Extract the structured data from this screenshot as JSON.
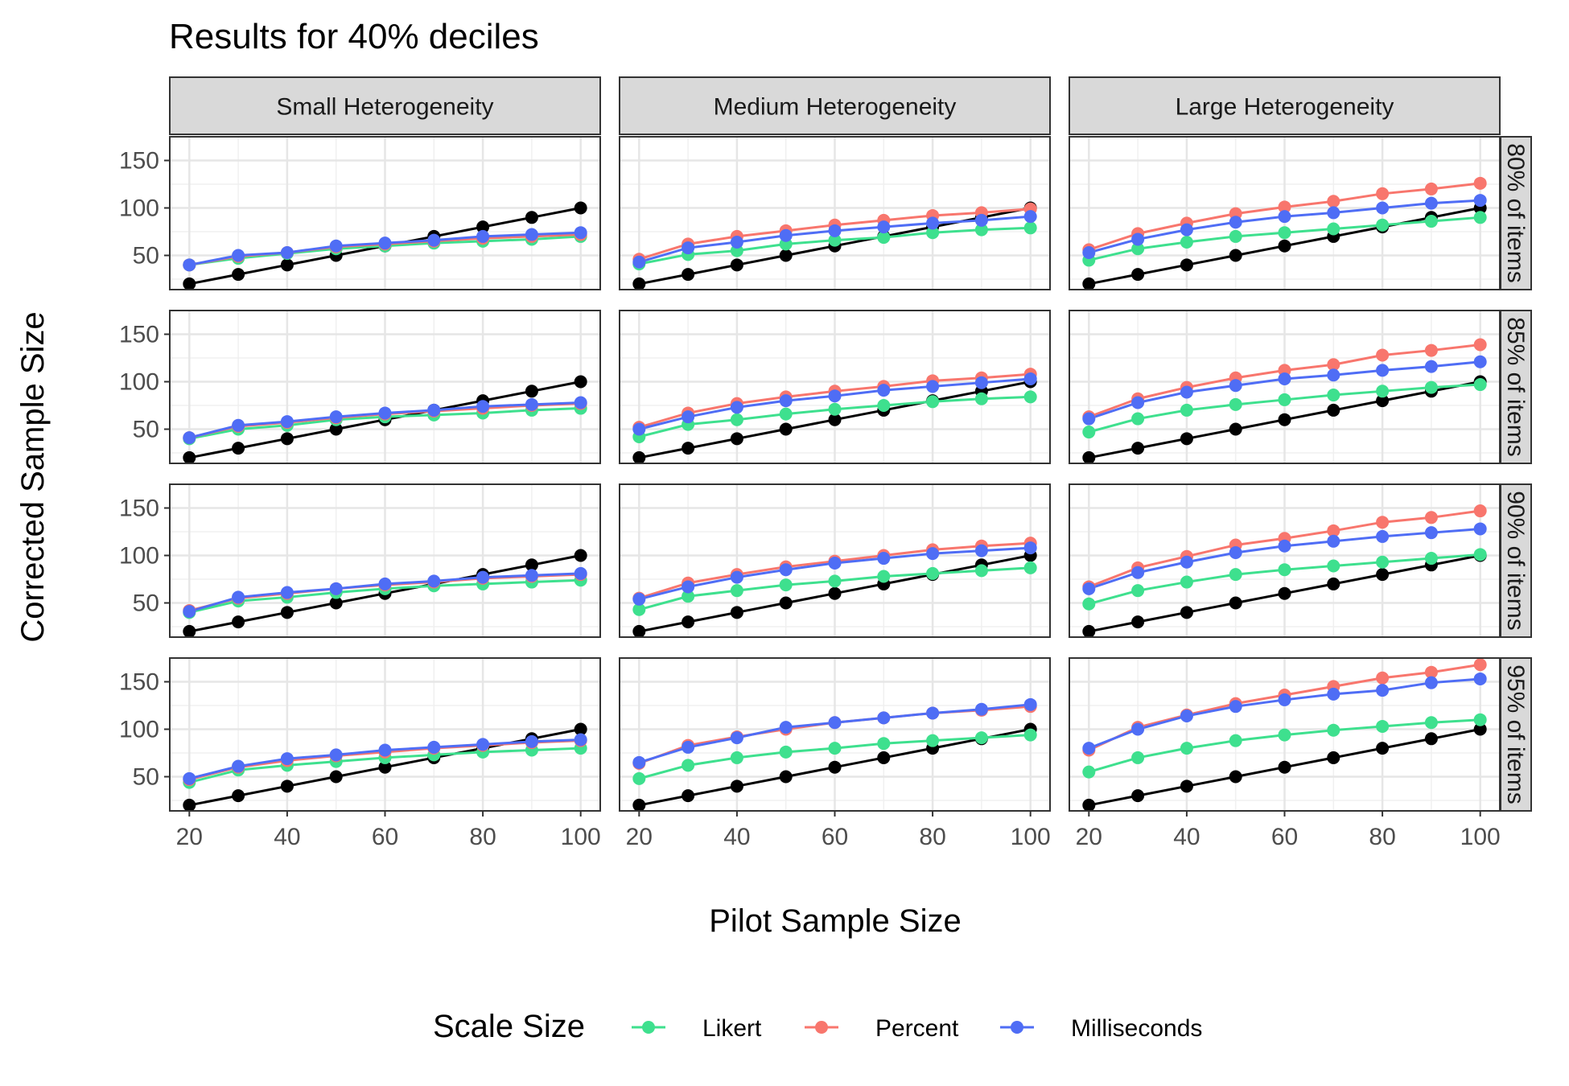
{
  "chart_data": {
    "type": "line",
    "title": "Results for 40% deciles",
    "xlabel": "Pilot Sample Size",
    "ylabel": "Corrected Sample Size",
    "x": [
      20,
      30,
      40,
      50,
      60,
      70,
      80,
      90,
      100
    ],
    "x_ticks": [
      20,
      40,
      60,
      80,
      100
    ],
    "y_ticks": [
      50,
      100,
      150
    ],
    "xlim": [
      16,
      104
    ],
    "ylim": [
      14,
      175
    ],
    "grid": true,
    "legend": {
      "title": "Scale Size",
      "position": "bottom",
      "entries": [
        "Likert",
        "Percent",
        "Milliseconds"
      ]
    },
    "colors": {
      "Likert": "#3ee08e",
      "Percent": "#f8766d",
      "Milliseconds": "#4f6df5",
      "reference": "#000000"
    },
    "columns": [
      "Small Heterogeneity",
      "Medium Heterogeneity",
      "Large Heterogeneity"
    ],
    "rows": [
      "80% of items",
      "85% of items",
      "90% of items",
      "95% of items"
    ],
    "reference_values": [
      20,
      30,
      40,
      50,
      60,
      70,
      80,
      90,
      100
    ],
    "panels": [
      {
        "col": "Small Heterogeneity",
        "row": "80% of items",
        "series": [
          {
            "name": "Likert",
            "values": [
              40,
              47,
              52,
              57,
              60,
              63,
              65,
              67,
              70
            ]
          },
          {
            "name": "Percent",
            "values": [
              40,
              49,
              53,
              59,
              62,
              65,
              68,
              70,
              72
            ]
          },
          {
            "name": "Milliseconds",
            "values": [
              40,
              50,
              53,
              60,
              63,
              66,
              70,
              72,
              74
            ]
          }
        ]
      },
      {
        "col": "Medium Heterogeneity",
        "row": "80% of items",
        "series": [
          {
            "name": "Likert",
            "values": [
              41,
              51,
              55,
              62,
              66,
              69,
              74,
              77,
              79
            ]
          },
          {
            "name": "Percent",
            "values": [
              46,
              62,
              70,
              76,
              82,
              87,
              92,
              95,
              99
            ]
          },
          {
            "name": "Milliseconds",
            "values": [
              43,
              58,
              64,
              71,
              76,
              80,
              84,
              87,
              91
            ]
          }
        ]
      },
      {
        "col": "Large Heterogeneity",
        "row": "80% of items",
        "series": [
          {
            "name": "Likert",
            "values": [
              45,
              57,
              64,
              70,
              74,
              78,
              82,
              86,
              90
            ]
          },
          {
            "name": "Percent",
            "values": [
              56,
              73,
              84,
              94,
              101,
              107,
              115,
              120,
              126
            ]
          },
          {
            "name": "Milliseconds",
            "values": [
              53,
              67,
              77,
              85,
              91,
              95,
              100,
              105,
              108
            ]
          }
        ]
      },
      {
        "col": "Small Heterogeneity",
        "row": "85% of items",
        "series": [
          {
            "name": "Likert",
            "values": [
              40,
              50,
              54,
              60,
              63,
              65,
              67,
              70,
              72
            ]
          },
          {
            "name": "Percent",
            "values": [
              41,
              53,
              57,
              62,
              66,
              69,
              72,
              75,
              77
            ]
          },
          {
            "name": "Milliseconds",
            "values": [
              41,
              54,
              58,
              63,
              67,
              70,
              74,
              76,
              78
            ]
          }
        ]
      },
      {
        "col": "Medium Heterogeneity",
        "row": "85% of items",
        "series": [
          {
            "name": "Likert",
            "values": [
              42,
              55,
              60,
              66,
              71,
              75,
              79,
              82,
              84
            ]
          },
          {
            "name": "Percent",
            "values": [
              52,
              67,
              77,
              84,
              90,
              95,
              101,
              104,
              108
            ]
          },
          {
            "name": "Milliseconds",
            "values": [
              50,
              63,
              73,
              80,
              85,
              91,
              95,
              99,
              103
            ]
          }
        ]
      },
      {
        "col": "Large Heterogeneity",
        "row": "85% of items",
        "series": [
          {
            "name": "Likert",
            "values": [
              47,
              61,
              70,
              76,
              81,
              86,
              90,
              94,
              97
            ]
          },
          {
            "name": "Percent",
            "values": [
              63,
              82,
              94,
              104,
              112,
              118,
              128,
              133,
              139
            ]
          },
          {
            "name": "Milliseconds",
            "values": [
              61,
              78,
              89,
              96,
              103,
              107,
              112,
              116,
              121
            ]
          }
        ]
      },
      {
        "col": "Small Heterogeneity",
        "row": "90% of items",
        "series": [
          {
            "name": "Likert",
            "values": [
              40,
              52,
              56,
              61,
              65,
              68,
              70,
              72,
              74
            ]
          },
          {
            "name": "Percent",
            "values": [
              42,
              55,
              60,
              65,
              69,
              72,
              76,
              78,
              80
            ]
          },
          {
            "name": "Milliseconds",
            "values": [
              41,
              56,
              61,
              65,
              70,
              73,
              77,
              79,
              81
            ]
          }
        ]
      },
      {
        "col": "Medium Heterogeneity",
        "row": "90% of items",
        "series": [
          {
            "name": "Likert",
            "values": [
              43,
              57,
              63,
              69,
              73,
              78,
              81,
              84,
              87
            ]
          },
          {
            "name": "Percent",
            "values": [
              55,
              71,
              80,
              88,
              94,
              100,
              106,
              110,
              113
            ]
          },
          {
            "name": "Milliseconds",
            "values": [
              54,
              67,
              77,
              85,
              92,
              97,
              102,
              105,
              108
            ]
          }
        ]
      },
      {
        "col": "Large Heterogeneity",
        "row": "90% of items",
        "series": [
          {
            "name": "Likert",
            "values": [
              49,
              63,
              72,
              80,
              85,
              89,
              93,
              97,
              101
            ]
          },
          {
            "name": "Percent",
            "values": [
              67,
              87,
              99,
              111,
              118,
              126,
              135,
              140,
              147
            ]
          },
          {
            "name": "Milliseconds",
            "values": [
              65,
              82,
              93,
              103,
              110,
              115,
              120,
              124,
              128
            ]
          }
        ]
      },
      {
        "col": "Small Heterogeneity",
        "row": "95% of items",
        "series": [
          {
            "name": "Likert",
            "values": [
              44,
              57,
              62,
              66,
              70,
              73,
              76,
              78,
              80
            ]
          },
          {
            "name": "Percent",
            "values": [
              47,
              60,
              67,
              72,
              76,
              80,
              83,
              86,
              88
            ]
          },
          {
            "name": "Milliseconds",
            "values": [
              48,
              61,
              69,
              73,
              78,
              81,
              84,
              87,
              89
            ]
          }
        ]
      },
      {
        "col": "Medium Heterogeneity",
        "row": "95% of items",
        "series": [
          {
            "name": "Likert",
            "values": [
              48,
              62,
              70,
              76,
              80,
              85,
              88,
              91,
              94
            ]
          },
          {
            "name": "Percent",
            "values": [
              64,
              83,
              92,
              100,
              107,
              112,
              117,
              120,
              124
            ]
          },
          {
            "name": "Milliseconds",
            "values": [
              65,
              81,
              91,
              102,
              107,
              112,
              117,
              121,
              126
            ]
          }
        ]
      },
      {
        "col": "Large Heterogeneity",
        "row": "95% of items",
        "series": [
          {
            "name": "Likert",
            "values": [
              55,
              70,
              80,
              88,
              94,
              99,
              103,
              107,
              110
            ]
          },
          {
            "name": "Percent",
            "values": [
              78,
              102,
              115,
              127,
              136,
              145,
              154,
              160,
              168
            ]
          },
          {
            "name": "Milliseconds",
            "values": [
              80,
              100,
              114,
              124,
              131,
              137,
              141,
              149,
              153
            ]
          }
        ]
      }
    ]
  }
}
